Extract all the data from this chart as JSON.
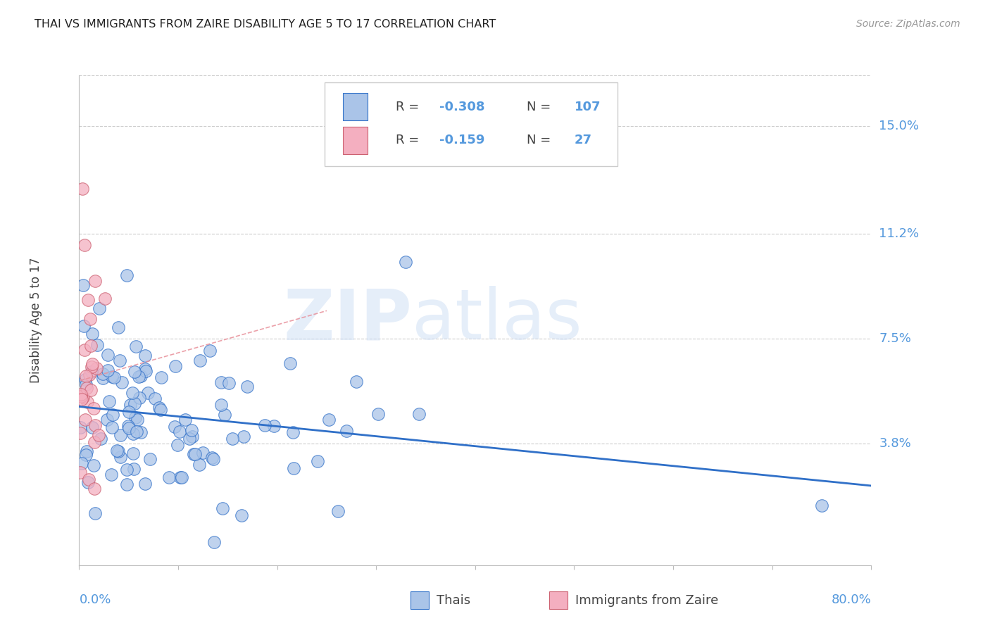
{
  "title": "THAI VS IMMIGRANTS FROM ZAIRE DISABILITY AGE 5 TO 17 CORRELATION CHART",
  "source": "Source: ZipAtlas.com",
  "ylabel": "Disability Age 5 to 17",
  "ytick_labels": [
    "15.0%",
    "11.2%",
    "7.5%",
    "3.8%"
  ],
  "ytick_values": [
    0.15,
    0.112,
    0.075,
    0.038
  ],
  "xmin": 0.0,
  "xmax": 0.8,
  "ymin": -0.005,
  "ymax": 0.168,
  "color_thai": "#aac4e8",
  "color_zaire": "#f4afc0",
  "color_trendline_thai": "#3070c8",
  "color_trendline_zaire": "#e8909a",
  "color_axis_text": "#5599dd",
  "color_grid": "#cccccc",
  "color_title": "#222222",
  "watermark_zip": "#d0e0f5",
  "watermark_atlas": "#d0e0f5",
  "legend_R1": "-0.308",
  "legend_N1": "107",
  "legend_R2": "-0.159",
  "legend_N2": "27"
}
